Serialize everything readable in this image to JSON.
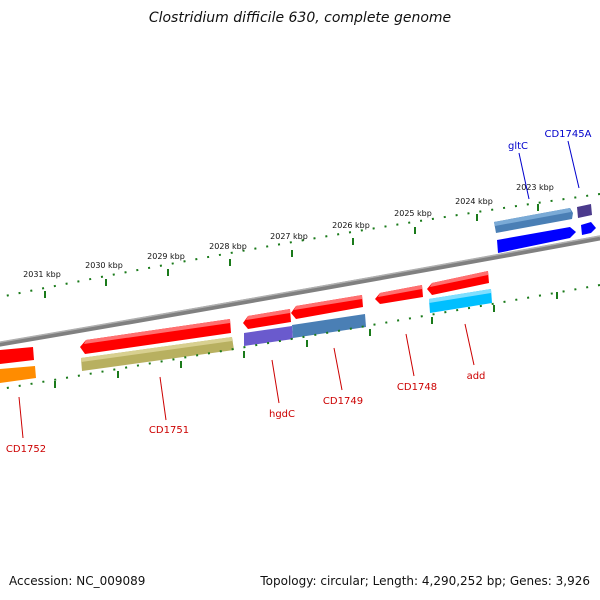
{
  "title": "Clostridium difficile 630, complete genome",
  "footer": {
    "accession": "Accession: NC_009089",
    "summary": "Topology: circular; Length: 4,290,252 bp; Genes: 3,926"
  },
  "ticks": [
    "2031 kbp",
    "2030 kbp",
    "2029 kbp",
    "2028 kbp",
    "2027 kbp",
    "2026 kbp",
    "2025 kbp",
    "2024 kbp",
    "2023 kbp"
  ],
  "genes": {
    "CD1752": "CD1752",
    "CD1751": "CD1751",
    "hgdC": "hgdC",
    "CD1749": "CD1749",
    "CD1748": "CD1748",
    "add": "add",
    "gltC": "gltC",
    "CD1745A": "CD1745A"
  },
  "colors": {
    "backbone": "#808080",
    "scale": "#1a7a1a",
    "forward_gene_label": "#0000cc",
    "reverse_gene_label": "#cc0000"
  }
}
